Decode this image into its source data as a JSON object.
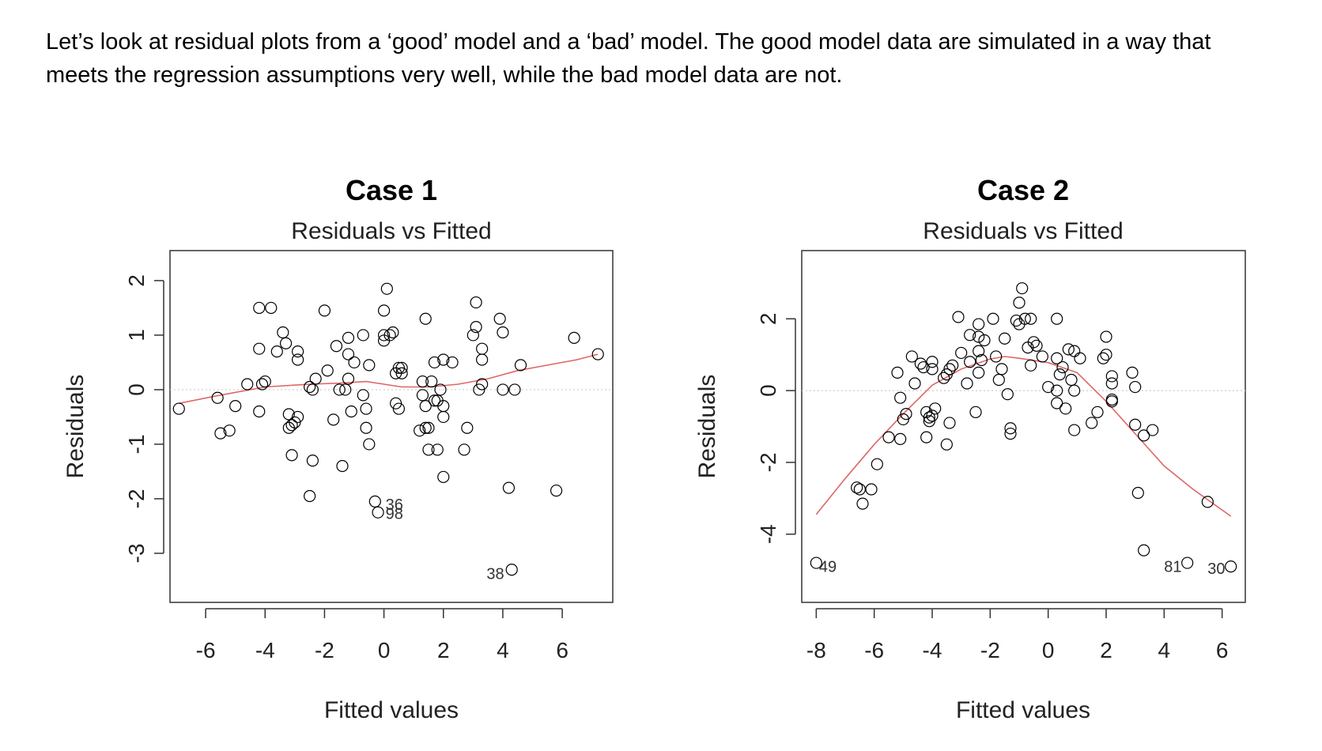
{
  "intro": {
    "line1": "Let’s look at residual plots from a ‘good’ model and a ‘bad’ model. The good model data are simulated in a way that",
    "line2": "meets the regression assumptions very well, while the bad model data are not."
  },
  "colors": {
    "smooth": "#e06666",
    "points": "#000000",
    "zero_line": "#cccccc"
  },
  "chart_data": [
    {
      "type": "scatter",
      "title": "Case 1",
      "subtitle": "Residuals vs Fitted",
      "xlabel": "Fitted values",
      "ylabel": "Residuals",
      "xlim": [
        -7.2,
        7.7
      ],
      "ylim": [
        -3.9,
        2.55
      ],
      "xticks": [
        -6,
        -4,
        -2,
        0,
        2,
        4,
        6
      ],
      "xtick_labels": [
        "-6",
        "-4",
        "-2",
        "0",
        "2",
        "4",
        "6"
      ],
      "yticks": [
        -3,
        -2,
        -1,
        0,
        1,
        2
      ],
      "ytick_labels": [
        "-3",
        "-2",
        "-1",
        "0",
        "1",
        "2"
      ],
      "grid": false,
      "zero_line": true,
      "points": [
        [
          -6.9,
          -0.35
        ],
        [
          -5.6,
          -0.15
        ],
        [
          -5.5,
          -0.8
        ],
        [
          -5.2,
          -0.75
        ],
        [
          -5.0,
          -0.3
        ],
        [
          -4.6,
          0.1
        ],
        [
          -4.2,
          -0.4
        ],
        [
          -4.2,
          1.5
        ],
        [
          -4.2,
          0.75
        ],
        [
          -4.1,
          0.1
        ],
        [
          -4.0,
          0.15
        ],
        [
          -3.8,
          1.5
        ],
        [
          -3.6,
          0.7
        ],
        [
          -3.4,
          1.05
        ],
        [
          -3.3,
          0.85
        ],
        [
          -3.2,
          -0.45
        ],
        [
          -3.2,
          -0.7
        ],
        [
          -3.1,
          -0.65
        ],
        [
          -3.0,
          -0.6
        ],
        [
          -2.9,
          -0.5
        ],
        [
          -2.9,
          0.7
        ],
        [
          -2.9,
          0.55
        ],
        [
          -3.1,
          -1.2
        ],
        [
          -2.5,
          -1.95
        ],
        [
          -2.5,
          0.05
        ],
        [
          -2.4,
          -1.3
        ],
        [
          -2.3,
          0.2
        ],
        [
          -2.4,
          0.0
        ],
        [
          -2.0,
          1.45
        ],
        [
          -1.9,
          0.35
        ],
        [
          -1.7,
          -0.55
        ],
        [
          -1.6,
          0.8
        ],
        [
          -1.5,
          0.0
        ],
        [
          -1.4,
          -1.4
        ],
        [
          -1.3,
          0.0
        ],
        [
          -1.2,
          0.65
        ],
        [
          -1.2,
          0.95
        ],
        [
          -1.2,
          0.2
        ],
        [
          -1.1,
          -0.4
        ],
        [
          -1.0,
          0.5
        ],
        [
          -0.7,
          1.0
        ],
        [
          -0.7,
          -0.1
        ],
        [
          -0.6,
          -0.7
        ],
        [
          -0.6,
          -0.35
        ],
        [
          -0.5,
          0.45
        ],
        [
          -0.5,
          -1.0
        ],
        [
          -0.3,
          -2.05
        ],
        [
          -0.2,
          -2.25
        ],
        [
          0.0,
          1.45
        ],
        [
          0.0,
          0.9
        ],
        [
          0.0,
          1.0
        ],
        [
          0.1,
          1.85
        ],
        [
          0.2,
          1.0
        ],
        [
          0.3,
          1.05
        ],
        [
          0.4,
          0.3
        ],
        [
          0.4,
          -0.25
        ],
        [
          0.5,
          -0.35
        ],
        [
          0.5,
          0.4
        ],
        [
          0.6,
          0.3
        ],
        [
          0.6,
          0.4
        ],
        [
          1.2,
          -0.75
        ],
        [
          1.3,
          0.15
        ],
        [
          1.3,
          -0.1
        ],
        [
          1.4,
          1.3
        ],
        [
          1.4,
          -0.3
        ],
        [
          1.4,
          -0.7
        ],
        [
          1.5,
          -0.7
        ],
        [
          1.5,
          -1.1
        ],
        [
          1.6,
          0.15
        ],
        [
          1.7,
          -0.2
        ],
        [
          1.7,
          0.5
        ],
        [
          1.8,
          -1.1
        ],
        [
          1.8,
          -0.2
        ],
        [
          1.9,
          0.0
        ],
        [
          2.0,
          -0.3
        ],
        [
          2.0,
          -1.6
        ],
        [
          2.0,
          -0.5
        ],
        [
          2.0,
          0.55
        ],
        [
          2.3,
          0.5
        ],
        [
          2.7,
          -1.1
        ],
        [
          2.8,
          -0.7
        ],
        [
          3.0,
          1.0
        ],
        [
          3.1,
          1.6
        ],
        [
          3.1,
          1.15
        ],
        [
          3.2,
          0.0
        ],
        [
          3.3,
          0.1
        ],
        [
          3.3,
          0.55
        ],
        [
          3.3,
          0.75
        ],
        [
          3.9,
          1.3
        ],
        [
          4.0,
          1.05
        ],
        [
          4.0,
          0.0
        ],
        [
          4.2,
          -1.8
        ],
        [
          4.3,
          -3.3
        ],
        [
          4.4,
          0.0
        ],
        [
          4.6,
          0.45
        ],
        [
          5.8,
          -1.85
        ],
        [
          6.4,
          0.95
        ],
        [
          7.2,
          0.65
        ]
      ],
      "point_labels": [
        {
          "text": "36",
          "x": 0.35,
          "y": -2.1
        },
        {
          "text": "98",
          "x": 0.35,
          "y": -2.27
        },
        {
          "text": "38",
          "x": 3.75,
          "y": -3.37
        }
      ],
      "smooth": [
        [
          -6.9,
          -0.25
        ],
        [
          -5.5,
          -0.1
        ],
        [
          -4.0,
          0.05
        ],
        [
          -2.5,
          0.1
        ],
        [
          -1.5,
          0.12
        ],
        [
          -0.6,
          0.15
        ],
        [
          0.0,
          0.1
        ],
        [
          0.6,
          0.05
        ],
        [
          1.5,
          0.05
        ],
        [
          2.5,
          0.1
        ],
        [
          3.5,
          0.2
        ],
        [
          4.5,
          0.35
        ],
        [
          5.5,
          0.45
        ],
        [
          6.5,
          0.55
        ],
        [
          7.2,
          0.65
        ]
      ]
    },
    {
      "type": "scatter",
      "title": "Case 2",
      "subtitle": "Residuals vs Fitted",
      "xlabel": "Fitted values",
      "ylabel": "Residuals",
      "xlim": [
        -8.5,
        6.8
      ],
      "ylim": [
        -5.9,
        3.9
      ],
      "xticks": [
        -8,
        -6,
        -4,
        -2,
        0,
        2,
        4,
        6
      ],
      "xtick_labels": [
        "-8",
        "-6",
        "-4",
        "-2",
        "0",
        "2",
        "4",
        "6"
      ],
      "yticks": [
        -4,
        -2,
        0,
        2
      ],
      "ytick_labels": [
        "-4",
        "-2",
        "0",
        "2"
      ],
      "grid": false,
      "zero_line": true,
      "points": [
        [
          -8.0,
          -4.8
        ],
        [
          -6.6,
          -2.7
        ],
        [
          -6.5,
          -2.75
        ],
        [
          -6.4,
          -3.15
        ],
        [
          -6.1,
          -2.75
        ],
        [
          -5.9,
          -2.05
        ],
        [
          -5.5,
          -1.3
        ],
        [
          -5.2,
          0.5
        ],
        [
          -5.1,
          -0.2
        ],
        [
          -5.1,
          -1.35
        ],
        [
          -5.0,
          -0.8
        ],
        [
          -4.9,
          -0.65
        ],
        [
          -4.7,
          0.95
        ],
        [
          -4.6,
          0.2
        ],
        [
          -4.4,
          0.75
        ],
        [
          -4.3,
          0.65
        ],
        [
          -4.2,
          -1.3
        ],
        [
          -4.2,
          -0.6
        ],
        [
          -4.1,
          -0.85
        ],
        [
          -4.1,
          -0.75
        ],
        [
          -4.0,
          -0.7
        ],
        [
          -4.0,
          0.8
        ],
        [
          -4.0,
          0.6
        ],
        [
          -3.9,
          -0.5
        ],
        [
          -3.6,
          0.35
        ],
        [
          -3.5,
          0.45
        ],
        [
          -3.5,
          -1.5
        ],
        [
          -3.4,
          -0.9
        ],
        [
          -3.4,
          0.6
        ],
        [
          -3.3,
          0.7
        ],
        [
          -3.1,
          2.05
        ],
        [
          -3.0,
          1.05
        ],
        [
          -2.8,
          0.2
        ],
        [
          -2.7,
          0.8
        ],
        [
          -2.7,
          1.55
        ],
        [
          -2.5,
          -0.6
        ],
        [
          -2.4,
          1.1
        ],
        [
          -2.4,
          1.5
        ],
        [
          -2.4,
          1.85
        ],
        [
          -2.4,
          0.5
        ],
        [
          -2.3,
          0.85
        ],
        [
          -2.2,
          1.4
        ],
        [
          -1.9,
          2.0
        ],
        [
          -1.8,
          0.95
        ],
        [
          -1.7,
          0.3
        ],
        [
          -1.6,
          0.6
        ],
        [
          -1.5,
          1.45
        ],
        [
          -1.4,
          -0.1
        ],
        [
          -1.3,
          -1.05
        ],
        [
          -1.3,
          -1.2
        ],
        [
          -1.1,
          1.95
        ],
        [
          -1.0,
          1.85
        ],
        [
          -1.0,
          2.45
        ],
        [
          -0.9,
          2.85
        ],
        [
          -0.8,
          2.0
        ],
        [
          -0.7,
          1.2
        ],
        [
          -0.6,
          2.0
        ],
        [
          -0.6,
          0.7
        ],
        [
          -0.5,
          1.35
        ],
        [
          -0.4,
          1.25
        ],
        [
          -0.2,
          0.95
        ],
        [
          0.0,
          0.1
        ],
        [
          0.3,
          2.0
        ],
        [
          0.3,
          0.0
        ],
        [
          0.3,
          -0.35
        ],
        [
          0.3,
          0.9
        ],
        [
          0.4,
          0.45
        ],
        [
          0.5,
          0.65
        ],
        [
          0.6,
          -0.5
        ],
        [
          0.7,
          1.15
        ],
        [
          0.8,
          0.3
        ],
        [
          0.9,
          1.1
        ],
        [
          0.9,
          -1.1
        ],
        [
          0.9,
          0.0
        ],
        [
          1.1,
          0.9
        ],
        [
          1.5,
          -0.9
        ],
        [
          1.7,
          -0.6
        ],
        [
          1.9,
          0.9
        ],
        [
          2.0,
          1.5
        ],
        [
          2.0,
          1.0
        ],
        [
          2.2,
          0.4
        ],
        [
          2.2,
          0.2
        ],
        [
          2.2,
          -0.25
        ],
        [
          2.2,
          -0.3
        ],
        [
          2.9,
          0.5
        ],
        [
          3.0,
          0.1
        ],
        [
          3.0,
          -0.95
        ],
        [
          3.1,
          -2.85
        ],
        [
          3.3,
          -4.45
        ],
        [
          3.3,
          -1.25
        ],
        [
          3.6,
          -1.1
        ],
        [
          4.8,
          -4.8
        ],
        [
          5.5,
          -3.1
        ],
        [
          6.3,
          -4.9
        ]
      ],
      "point_labels": [
        {
          "text": "49",
          "x": -7.6,
          "y": -4.9
        },
        {
          "text": "81",
          "x": 4.3,
          "y": -4.9
        },
        {
          "text": "30",
          "x": 5.8,
          "y": -4.95
        }
      ],
      "smooth": [
        [
          -8.0,
          -3.45
        ],
        [
          -7.0,
          -2.45
        ],
        [
          -6.0,
          -1.5
        ],
        [
          -5.0,
          -0.65
        ],
        [
          -4.0,
          0.15
        ],
        [
          -3.0,
          0.6
        ],
        [
          -2.0,
          0.88
        ],
        [
          -1.5,
          0.95
        ],
        [
          -1.0,
          0.9
        ],
        [
          0.0,
          0.78
        ],
        [
          1.0,
          0.5
        ],
        [
          2.0,
          -0.3
        ],
        [
          3.0,
          -1.2
        ],
        [
          4.0,
          -2.1
        ],
        [
          5.0,
          -2.75
        ],
        [
          6.3,
          -3.5
        ]
      ]
    }
  ]
}
